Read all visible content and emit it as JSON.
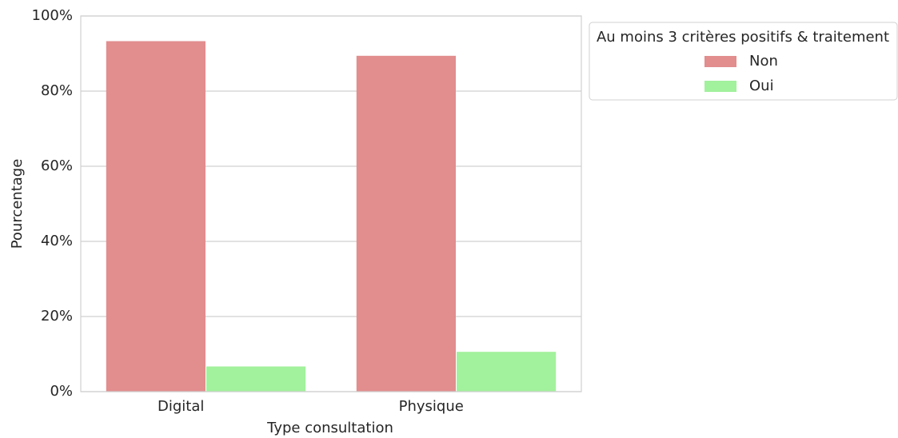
{
  "chart_data": {
    "type": "bar",
    "categories": [
      "Digital",
      "Physique"
    ],
    "series": [
      {
        "name": "Non",
        "color": "#e28d8e",
        "values": [
          93.3,
          89.4
        ]
      },
      {
        "name": "Oui",
        "color": "#a2f19d",
        "values": [
          6.7,
          10.6
        ]
      }
    ],
    "xlabel": "Type consultation",
    "ylabel": "Pourcentage",
    "legend_title": "Au moins 3 critères positifs & traitement",
    "legend": "outside upper right",
    "ylim": [
      0,
      100
    ],
    "yticks": [
      {
        "value": 0,
        "label": "0%"
      },
      {
        "value": 20,
        "label": "20%"
      },
      {
        "value": 40,
        "label": "40%"
      },
      {
        "value": 60,
        "label": "60%"
      },
      {
        "value": 80,
        "label": "80%"
      },
      {
        "value": 100,
        "label": "100%"
      }
    ],
    "grid": true
  }
}
